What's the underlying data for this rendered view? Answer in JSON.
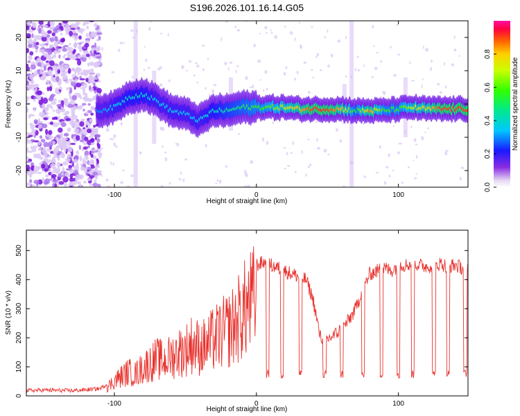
{
  "chart_data": [
    {
      "type": "heatmap",
      "title": "S196.2026.101.16.14.G05",
      "xlabel": "Height of straight line (km)",
      "ylabel": "Frequency (Hz)",
      "xlim": [
        -162,
        149
      ],
      "ylim": [
        -25,
        25
      ],
      "xticks": [
        -100,
        0,
        100
      ],
      "yticks": [
        -20,
        -10,
        0,
        10,
        20
      ],
      "colorbar": {
        "label": "Normalized spectral amplitude",
        "range": [
          0,
          1
        ],
        "ticks": [
          0.0,
          0.2,
          0.4,
          0.6,
          0.8
        ]
      },
      "ridge": {
        "x": [
          -110,
          -100,
          -90,
          -80,
          -70,
          -60,
          -50,
          -40,
          -30,
          -20,
          -10,
          0,
          10,
          20,
          30,
          40,
          50,
          60,
          70,
          80,
          90,
          100,
          110,
          120,
          130,
          140,
          149
        ],
        "freq": [
          -2,
          -1,
          2,
          3,
          1,
          -2,
          -3,
          -5,
          -2,
          -2,
          -1,
          -1,
          -1,
          -1,
          -1.5,
          -1.5,
          -1.5,
          -1.5,
          -2,
          -2,
          -2,
          -1.5,
          -1,
          -1.5,
          -1.5,
          -1.5,
          -1.5
        ],
        "amplitude": [
          0.3,
          0.35,
          0.4,
          0.4,
          0.35,
          0.35,
          0.35,
          0.35,
          0.4,
          0.45,
          0.5,
          0.55,
          0.6,
          0.7,
          0.8,
          0.9,
          0.9,
          0.8,
          0.5,
          0.85,
          0.55,
          0.55,
          0.7,
          0.75,
          0.9,
          0.9,
          0.9
        ]
      }
    },
    {
      "type": "line",
      "xlabel": "Height of straight line (km)",
      "ylabel": "SNR (10 * v/v)",
      "xlim": [
        -162,
        149
      ],
      "ylim": [
        0,
        570
      ],
      "xticks": [
        -100,
        0,
        100
      ],
      "yticks": [
        0,
        100,
        200,
        300,
        400,
        500
      ],
      "series": [
        {
          "name": "SNR",
          "color": "#e8322d",
          "x": [
            -162,
            -150,
            -140,
            -130,
            -120,
            -110,
            -104,
            -100,
            -95,
            -90,
            -85,
            -80,
            -75,
            -70,
            -65,
            -60,
            -55,
            -50,
            -45,
            -40,
            -35,
            -30,
            -25,
            -20,
            -15,
            -10,
            -5,
            0,
            5,
            10,
            15,
            20,
            25,
            30,
            35,
            40,
            45,
            50,
            55,
            60,
            65,
            70,
            75,
            80,
            85,
            90,
            95,
            100,
            105,
            110,
            115,
            120,
            125,
            130,
            135,
            140,
            145,
            149
          ],
          "y": [
            18,
            20,
            19,
            18,
            21,
            25,
            45,
            70,
            90,
            110,
            100,
            130,
            150,
            170,
            160,
            180,
            200,
            210,
            240,
            220,
            230,
            260,
            280,
            300,
            330,
            380,
            420,
            450,
            460,
            450,
            440,
            430,
            420,
            410,
            400,
            330,
            200,
            195,
            210,
            230,
            260,
            300,
            370,
            420,
            430,
            440,
            430,
            450,
            450,
            455,
            450,
            445,
            450,
            455,
            445,
            450,
            440,
            445
          ]
        }
      ]
    }
  ]
}
